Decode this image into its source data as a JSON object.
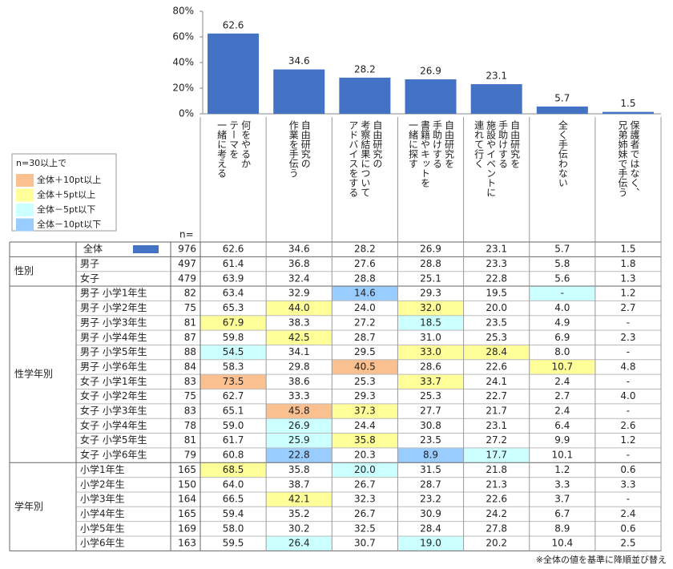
{
  "chart_data": {
    "type": "bar",
    "categories": [
      "何をやるか\nテーマを\n一緒に考える",
      "自由研究の\n作業を手伝う",
      "自由研究の\n考察結果について\nアドバイスをする",
      "自由研究を\n手助けする\n書籍やキットを\n一緒に探す",
      "自由研究を\n手助けする\n施設やイベントに\n連れて行く",
      "全く手伝わない",
      "保護者ではなく、\n兄弟姉妹で手伝う"
    ],
    "values": [
      62.6,
      34.6,
      28.2,
      26.9,
      23.1,
      5.7,
      1.5
    ],
    "color": "#4472c4",
    "ylim": [
      0,
      80
    ],
    "yticks": [
      {
        "value": 0,
        "label": "0%"
      },
      {
        "value": 20,
        "label": "20%"
      },
      {
        "value": 40,
        "label": "40%"
      },
      {
        "value": 60,
        "label": "60%"
      },
      {
        "value": 80,
        "label": "80%"
      }
    ]
  },
  "legend": {
    "title": "n=30以上で",
    "items": [
      {
        "label": "全体＋10pt以上",
        "color": "#fac090"
      },
      {
        "label": "全体＋5pt以上",
        "color": "#ffff99"
      },
      {
        "label": "全体－5pt以下",
        "color": "#ccffff"
      },
      {
        "label": "全体－10pt以下",
        "color": "#99ccff"
      }
    ]
  },
  "table": {
    "n_header": "n=",
    "total": {
      "label": "全体",
      "n": "976"
    },
    "groups": [
      {
        "label": "性別",
        "rows": [
          {
            "label": "男子",
            "n": "497",
            "values": [
              "61.4",
              "36.8",
              "27.6",
              "28.8",
              "23.3",
              "5.8",
              "1.8"
            ],
            "fills": [
              null,
              null,
              null,
              null,
              null,
              null,
              null
            ]
          },
          {
            "label": "女子",
            "n": "479",
            "values": [
              "63.9",
              "32.4",
              "28.8",
              "25.1",
              "22.8",
              "5.6",
              "1.3"
            ],
            "fills": [
              null,
              null,
              null,
              null,
              null,
              null,
              null
            ]
          }
        ]
      },
      {
        "label": "性学年別",
        "rows": [
          {
            "label": "男子  小学1年生",
            "n": "82",
            "values": [
              "63.4",
              "32.9",
              "14.6",
              "29.3",
              "19.5",
              "-",
              "1.2"
            ],
            "fills": [
              null,
              null,
              "#99ccff",
              null,
              null,
              "#ccffff",
              null
            ]
          },
          {
            "label": "男子  小学2年生",
            "n": "75",
            "values": [
              "65.3",
              "44.0",
              "24.0",
              "32.0",
              "20.0",
              "4.0",
              "2.7"
            ],
            "fills": [
              null,
              "#ffff99",
              null,
              "#ffff99",
              null,
              null,
              null
            ]
          },
          {
            "label": "男子  小学3年生",
            "n": "81",
            "values": [
              "67.9",
              "38.3",
              "27.2",
              "18.5",
              "23.5",
              "4.9",
              "-"
            ],
            "fills": [
              "#ffff99",
              null,
              null,
              "#ccffff",
              null,
              null,
              null
            ]
          },
          {
            "label": "男子  小学4年生",
            "n": "87",
            "values": [
              "59.8",
              "42.5",
              "28.7",
              "31.0",
              "25.3",
              "6.9",
              "2.3"
            ],
            "fills": [
              null,
              "#ffff99",
              null,
              null,
              null,
              null,
              null
            ]
          },
          {
            "label": "男子  小学5年生",
            "n": "88",
            "values": [
              "54.5",
              "34.1",
              "29.5",
              "33.0",
              "28.4",
              "8.0",
              "-"
            ],
            "fills": [
              "#ccffff",
              null,
              null,
              "#ffff99",
              "#ffff99",
              null,
              null
            ]
          },
          {
            "label": "男子  小学6年生",
            "n": "84",
            "values": [
              "58.3",
              "29.8",
              "40.5",
              "28.6",
              "22.6",
              "10.7",
              "4.8"
            ],
            "fills": [
              null,
              null,
              "#fac090",
              null,
              null,
              "#ffff99",
              null
            ]
          },
          {
            "label": "女子  小学1年生",
            "n": "83",
            "values": [
              "73.5",
              "38.6",
              "25.3",
              "33.7",
              "24.1",
              "2.4",
              "-"
            ],
            "fills": [
              "#fac090",
              null,
              null,
              "#ffff99",
              null,
              null,
              null
            ]
          },
          {
            "label": "女子  小学2年生",
            "n": "75",
            "values": [
              "62.7",
              "33.3",
              "29.3",
              "25.3",
              "22.7",
              "2.7",
              "4.0"
            ],
            "fills": [
              null,
              null,
              null,
              null,
              null,
              null,
              null
            ]
          },
          {
            "label": "女子  小学3年生",
            "n": "83",
            "values": [
              "65.1",
              "45.8",
              "37.3",
              "27.7",
              "21.7",
              "2.4",
              "-"
            ],
            "fills": [
              null,
              "#fac090",
              "#ffff99",
              null,
              null,
              null,
              null
            ]
          },
          {
            "label": "女子  小学4年生",
            "n": "78",
            "values": [
              "59.0",
              "26.9",
              "24.4",
              "30.8",
              "23.1",
              "6.4",
              "2.6"
            ],
            "fills": [
              null,
              "#ccffff",
              null,
              null,
              null,
              null,
              null
            ]
          },
          {
            "label": "女子  小学5年生",
            "n": "81",
            "values": [
              "61.7",
              "25.9",
              "35.8",
              "23.5",
              "27.2",
              "9.9",
              "1.2"
            ],
            "fills": [
              null,
              "#ccffff",
              "#ffff99",
              null,
              null,
              null,
              null
            ]
          },
          {
            "label": "女子  小学6年生",
            "n": "79",
            "values": [
              "60.8",
              "22.8",
              "20.3",
              "8.9",
              "17.7",
              "10.1",
              "-"
            ],
            "fills": [
              null,
              "#99ccff",
              null,
              "#99ccff",
              "#ccffff",
              null,
              null
            ]
          }
        ]
      },
      {
        "label": "学年別",
        "rows": [
          {
            "label": "小学1年生",
            "n": "165",
            "values": [
              "68.5",
              "35.8",
              "20.0",
              "31.5",
              "21.8",
              "1.2",
              "0.6"
            ],
            "fills": [
              "#ffff99",
              null,
              "#ccffff",
              null,
              null,
              null,
              null
            ]
          },
          {
            "label": "小学2年生",
            "n": "150",
            "values": [
              "64.0",
              "38.7",
              "26.7",
              "28.7",
              "21.3",
              "3.3",
              "3.3"
            ],
            "fills": [
              null,
              null,
              null,
              null,
              null,
              null,
              null
            ]
          },
          {
            "label": "小学3年生",
            "n": "164",
            "values": [
              "66.5",
              "42.1",
              "32.3",
              "23.2",
              "22.6",
              "3.7",
              "-"
            ],
            "fills": [
              null,
              "#ffff99",
              null,
              null,
              null,
              null,
              null
            ]
          },
          {
            "label": "小学4年生",
            "n": "165",
            "values": [
              "59.4",
              "35.2",
              "26.7",
              "30.9",
              "24.2",
              "6.7",
              "2.4"
            ],
            "fills": [
              null,
              null,
              null,
              null,
              null,
              null,
              null
            ]
          },
          {
            "label": "小学5年生",
            "n": "169",
            "values": [
              "58.0",
              "30.2",
              "32.5",
              "28.4",
              "27.8",
              "8.9",
              "0.6"
            ],
            "fills": [
              null,
              null,
              null,
              null,
              null,
              null,
              null
            ]
          },
          {
            "label": "小学6年生",
            "n": "163",
            "values": [
              "59.5",
              "26.4",
              "30.7",
              "19.0",
              "20.2",
              "10.4",
              "2.5"
            ],
            "fills": [
              null,
              "#ccffff",
              null,
              "#ccffff",
              null,
              null,
              null
            ]
          }
        ]
      }
    ]
  },
  "note": "※全体の値を基準に降順並び替え"
}
